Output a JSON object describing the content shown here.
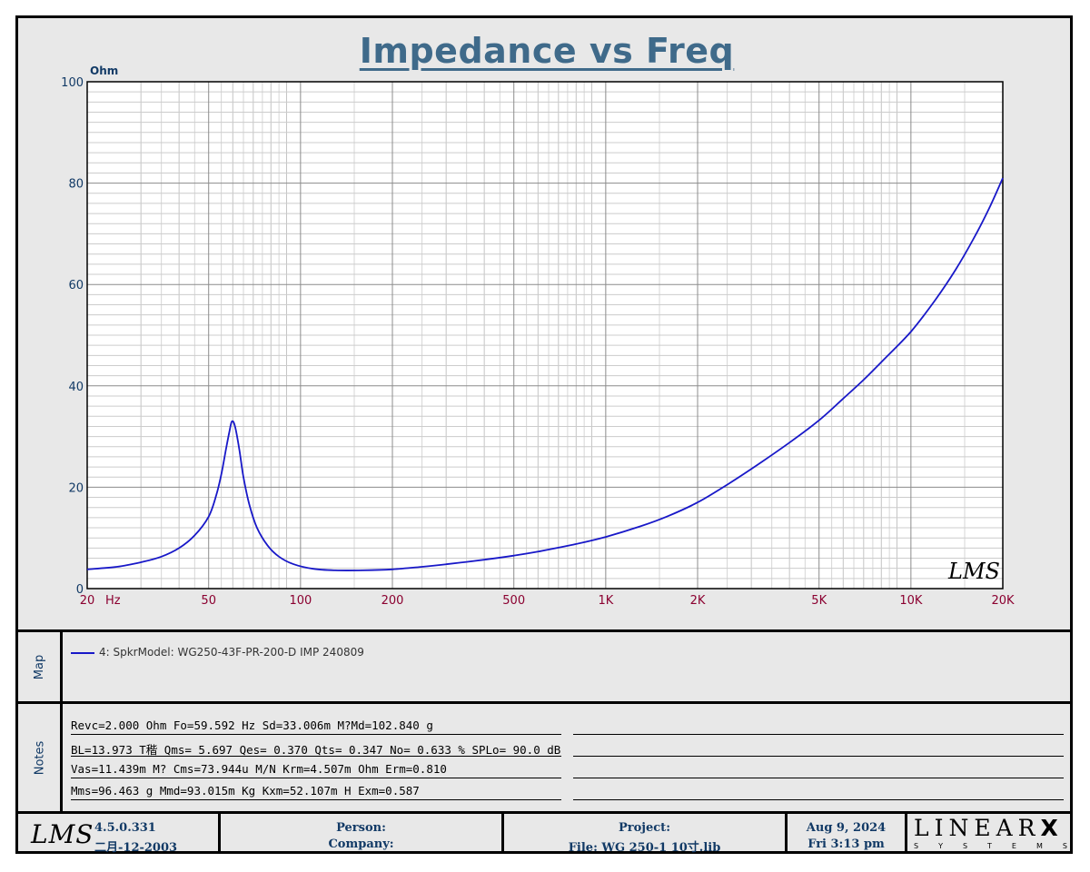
{
  "page": {
    "title": "Impedance vs Freq"
  },
  "chart_data": {
    "type": "line",
    "x_scale": "log",
    "xlim": [
      20,
      20000
    ],
    "ylim": [
      0,
      100
    ],
    "ylabel": "Ohm",
    "x_unit": "Hz",
    "y_ticks": [
      0,
      20,
      40,
      60,
      80,
      100
    ],
    "x_ticks": [
      {
        "value": 20,
        "label": "20"
      },
      {
        "value": 50,
        "label": "50"
      },
      {
        "value": 100,
        "label": "100"
      },
      {
        "value": 200,
        "label": "200"
      },
      {
        "value": 500,
        "label": "500"
      },
      {
        "value": 1000,
        "label": "1K"
      },
      {
        "value": 2000,
        "label": "2K"
      },
      {
        "value": 5000,
        "label": "5K"
      },
      {
        "value": 10000,
        "label": "10K"
      },
      {
        "value": 20000,
        "label": "20K"
      }
    ],
    "grid": true,
    "watermark": "LMS",
    "series": [
      {
        "name": "4: SpkrModel: WG250-43F-PR-200-D IMP 240809",
        "color": "#1818c8",
        "x": [
          20,
          25,
          30,
          35,
          40,
          45,
          50,
          53,
          55,
          57,
          58.5,
          59.6,
          61,
          63,
          65,
          68,
          72,
          78,
          85,
          95,
          110,
          130,
          160,
          200,
          250,
          300,
          400,
          500,
          600,
          800,
          1000,
          1300,
          1600,
          2000,
          2500,
          3000,
          4000,
          5000,
          6000,
          7000,
          8000,
          10000,
          12000,
          14000,
          16000,
          18000,
          20000
        ],
        "y": [
          3.8,
          4.3,
          5.2,
          6.3,
          8.0,
          10.5,
          14.2,
          18.5,
          22.5,
          27.5,
          31.0,
          33.0,
          32.0,
          27.5,
          22.0,
          16.5,
          12.0,
          8.5,
          6.3,
          4.8,
          3.9,
          3.6,
          3.6,
          3.8,
          4.3,
          4.8,
          5.7,
          6.5,
          7.3,
          8.8,
          10.2,
          12.3,
          14.3,
          17.0,
          20.5,
          23.6,
          28.8,
          33.2,
          37.5,
          41.2,
          44.7,
          50.7,
          56.9,
          62.9,
          68.9,
          74.9,
          81.0
        ]
      }
    ]
  },
  "map": {
    "label": "Map"
  },
  "notes": {
    "label": "Notes",
    "rows": [
      "Revc=2.000 Ohm  Fo=59.592 Hz  Sd=33.006m M?Md=102.840 g",
      "BL=13.973 T稭  Qms= 5.697  Qes= 0.370  Qts= 0.347  No= 0.633 %  SPLo= 90.0 dB",
      "Vas=11.439m M? Cms=73.944u M/N  Krm=4.507m Ohm  Erm=0.810",
      "Mms=96.463 g  Mmd=93.015m Kg  Kxm=52.107m H  Exm=0.587"
    ]
  },
  "footer": {
    "logo": "LMS",
    "version": "4.5.0.331",
    "build_date": "二月-12-2003",
    "person_label": "Person:",
    "company_label": "Company:",
    "project_label": "Project:",
    "file_label": "File: WG 250-1 10寸.lib",
    "date": "Aug  9, 2024",
    "time": "Fri  3:13 pm",
    "brand_top": "LINEAR",
    "brand_x": "X",
    "brand_bottom": "SYSTEMS"
  }
}
